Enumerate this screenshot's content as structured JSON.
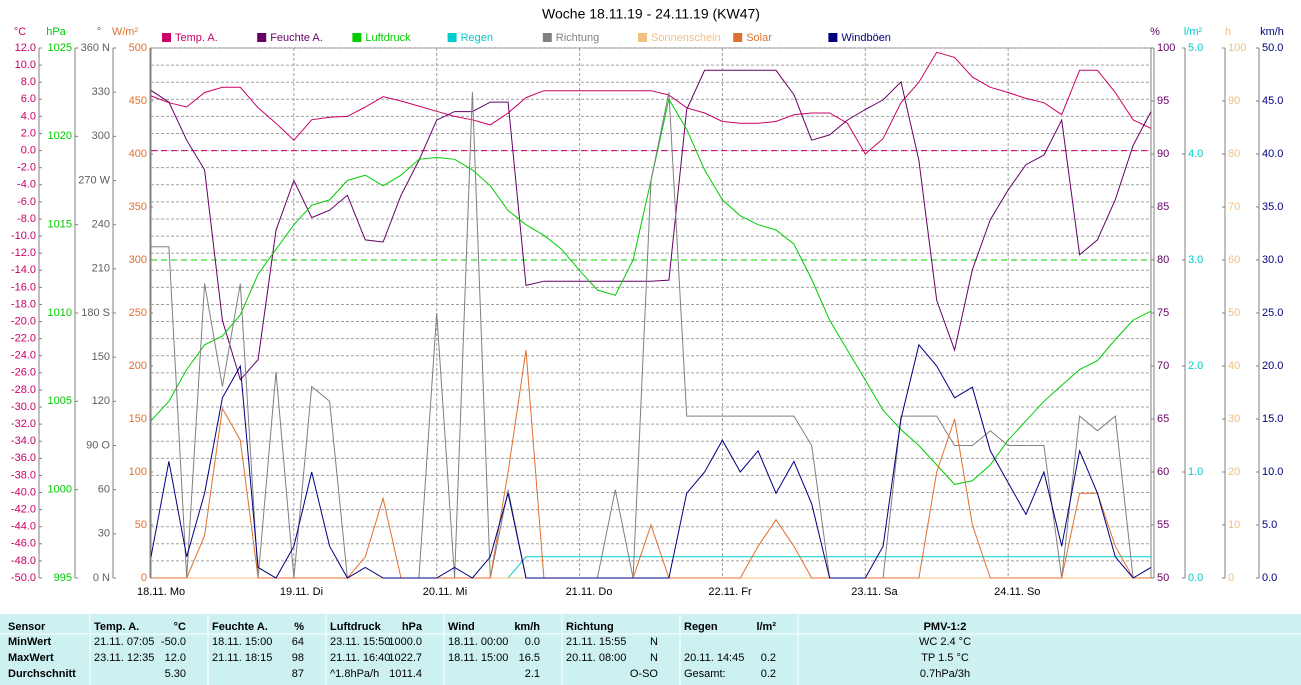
{
  "chart_data": {
    "type": "line",
    "title": "Woche 18.11.19 - 24.11.19 (KW47)",
    "categories": [
      "18.11.  Mo",
      null,
      null,
      null,
      null,
      null,
      null,
      null,
      "19.11.  Di",
      null,
      null,
      null,
      null,
      null,
      null,
      null,
      "20.11.  Mi",
      null,
      null,
      null,
      null,
      null,
      null,
      null,
      "21.11.  Do",
      null,
      null,
      null,
      null,
      null,
      null,
      null,
      "22.11.  Fr",
      null,
      null,
      null,
      null,
      null,
      null,
      null,
      "23.11.  Sa",
      null,
      null,
      null,
      null,
      null,
      null,
      null,
      "24.11.  So",
      null,
      null,
      null,
      null,
      null,
      null,
      null,
      null
    ],
    "grid": true,
    "axes": {
      "temp": {
        "unit": "°C",
        "color": "#cc0066",
        "lim": [
          -50,
          12
        ],
        "ticks": [
          {
            "value": 12,
            "label": "12.0"
          },
          {
            "value": 10,
            "label": "10.0"
          },
          {
            "value": 8,
            "label": "8.0"
          },
          {
            "value": 6,
            "label": "6.0"
          },
          {
            "value": 4,
            "label": "4.0"
          },
          {
            "value": 2,
            "label": "2.0"
          },
          {
            "value": 0,
            "label": "0.0"
          },
          {
            "value": -2,
            "label": "-2.0"
          },
          {
            "value": -4,
            "label": "-4.0"
          },
          {
            "value": -6,
            "label": "-6.0"
          },
          {
            "value": -8,
            "label": "-8.0"
          },
          {
            "value": -10,
            "label": "-10.0"
          },
          {
            "value": -12,
            "label": "-12.0"
          },
          {
            "value": -14,
            "label": "-14.0"
          },
          {
            "value": -16,
            "label": "-16.0"
          },
          {
            "value": -18,
            "label": "-18.0"
          },
          {
            "value": -20,
            "label": "-20.0"
          },
          {
            "value": -22,
            "label": "-22.0"
          },
          {
            "value": -24,
            "label": "-24.0"
          },
          {
            "value": -26,
            "label": "-26.0"
          },
          {
            "value": -28,
            "label": "-28.0"
          },
          {
            "value": -30,
            "label": "-30.0"
          },
          {
            "value": -32,
            "label": "-32.0"
          },
          {
            "value": -34,
            "label": "-34.0"
          },
          {
            "value": -36,
            "label": "-36.0"
          },
          {
            "value": -38,
            "label": "-38.0"
          },
          {
            "value": -40,
            "label": "-40.0"
          },
          {
            "value": -42,
            "label": "-42.0"
          },
          {
            "value": -44,
            "label": "-44.0"
          },
          {
            "value": -46,
            "label": "-46.0"
          },
          {
            "value": -48,
            "label": "-48.0"
          },
          {
            "value": -50,
            "label": "-50.0"
          }
        ]
      },
      "hpa": {
        "unit": "hPa",
        "color": "#00cc00",
        "lim": [
          995,
          1025
        ],
        "ticks": [
          1025,
          1020,
          1015,
          1010,
          1005,
          1000,
          995
        ]
      },
      "dir": {
        "unit": "°",
        "color": "#606060",
        "lim": [
          0,
          360
        ],
        "ticks": [
          {
            "value": 360,
            "label": "360 N"
          },
          330,
          300,
          {
            "value": 270,
            "label": "270 W"
          },
          240,
          210,
          {
            "value": 180,
            "label": "180 S"
          },
          150,
          120,
          {
            "value": 90,
            "label": "90 O"
          },
          60,
          30,
          {
            "value": 0,
            "label": "0 N"
          }
        ]
      },
      "wm2": {
        "unit": "W/m²",
        "color": "#e07030",
        "lim": [
          0,
          500
        ],
        "ticks": [
          500,
          450,
          400,
          350,
          300,
          250,
          200,
          150,
          100,
          50,
          0
        ]
      },
      "pct": {
        "unit": "%",
        "color": "#660066",
        "lim": [
          50,
          100
        ],
        "ticks": [
          100,
          95,
          90,
          85,
          80,
          75,
          70,
          65,
          60,
          55,
          50
        ]
      },
      "lm2": {
        "unit": "l/m²",
        "color": "#00cccc",
        "lim": [
          0,
          5
        ],
        "ticks": [
          {
            "value": 5,
            "label": "5.0"
          },
          {
            "value": 4,
            "label": "4.0"
          },
          {
            "value": 3,
            "label": "3.0"
          },
          {
            "value": 2,
            "label": "2.0"
          },
          {
            "value": 1,
            "label": "1.0"
          },
          {
            "value": 0,
            "label": "0.0"
          }
        ]
      },
      "h": {
        "unit": "h",
        "color": "#f0c080",
        "lim": [
          0,
          100
        ],
        "ticks": [
          100,
          90,
          80,
          70,
          60,
          50,
          40,
          30,
          20,
          10,
          0
        ]
      },
      "kmh": {
        "unit": "km/h",
        "color": "#000080",
        "lim": [
          0,
          50
        ],
        "ticks": [
          {
            "value": 50,
            "label": "50.0"
          },
          {
            "value": 45,
            "label": "45.0"
          },
          {
            "value": 40,
            "label": "40.0"
          },
          {
            "value": 35,
            "label": "35.0"
          },
          {
            "value": 30,
            "label": "30.0"
          },
          {
            "value": 25,
            "label": "25.0"
          },
          {
            "value": 20,
            "label": "20.0"
          },
          {
            "value": 15,
            "label": "15.0"
          },
          {
            "value": 10,
            "label": "10.0"
          },
          {
            "value": 5,
            "label": "5.0"
          },
          {
            "value": 0,
            "label": "0.0"
          }
        ]
      }
    },
    "reference_lines": [
      {
        "axis": "temp",
        "value": 0,
        "color": "#cc0066"
      },
      {
        "axis": "pct",
        "value": 80,
        "color": "#00cc00"
      }
    ],
    "series": [
      {
        "name": "Temp. A.",
        "color": "#cc0066",
        "axis": "temp",
        "values": [
          6.4,
          5.6,
          5.1,
          6.8,
          7.4,
          7.4,
          5.0,
          3.2,
          1.2,
          3.6,
          3.9,
          4.0,
          5.1,
          6.3,
          5.8,
          5.2,
          4.6,
          4.0,
          3.6,
          3.0,
          4.4,
          6.2,
          7.0,
          7.0,
          7.0,
          7.0,
          7.0,
          7.0,
          7.0,
          6.5,
          5.0,
          4.4,
          3.4,
          3.2,
          3.2,
          3.4,
          4.2,
          4.4,
          4.4,
          3.2,
          -0.4,
          1.4,
          5.6,
          8.0,
          11.5,
          10.9,
          8.6,
          7.4,
          6.8,
          6.1,
          5.6,
          4.2,
          9.4,
          9.4,
          6.8,
          3.6,
          2.6
        ]
      },
      {
        "name": "Feuchte A.",
        "color": "#660066",
        "axis": "pct",
        "values": [
          96.0,
          94.9,
          91.3,
          88.5,
          74.3,
          68.7,
          70.6,
          82.8,
          87.5,
          84.0,
          84.7,
          86.1,
          81.9,
          81.7,
          86.1,
          89.4,
          93.2,
          94.0,
          94.0,
          94.9,
          94.9,
          77.6,
          78.0,
          78.0,
          78.0,
          78.0,
          78.0,
          78.0,
          78.0,
          78.1,
          94.2,
          97.9,
          97.9,
          97.9,
          97.9,
          97.9,
          95.6,
          91.3,
          91.8,
          93.2,
          94.2,
          95.1,
          96.8,
          89.4,
          76.2,
          71.5,
          79.1,
          83.8,
          86.6,
          89.0,
          89.9,
          93.2,
          80.5,
          81.9,
          85.7,
          90.8,
          94.0
        ]
      },
      {
        "name": "Luftdruck",
        "color": "#00cc00",
        "axis": "hpa",
        "values": [
          1003.9,
          1005.0,
          1006.8,
          1008.2,
          1008.7,
          1009.9,
          1012.2,
          1013.6,
          1015.0,
          1016.1,
          1016.4,
          1017.5,
          1017.8,
          1017.2,
          1017.8,
          1018.7,
          1018.8,
          1018.7,
          1018.1,
          1017.2,
          1015.8,
          1015.0,
          1014.4,
          1013.6,
          1012.4,
          1011.3,
          1011.0,
          1013.0,
          1017.5,
          1022.1,
          1020.4,
          1018.1,
          1016.4,
          1015.5,
          1015.0,
          1014.7,
          1013.9,
          1011.9,
          1009.6,
          1007.9,
          1006.2,
          1004.5,
          1003.4,
          1002.5,
          1001.4,
          1000.3,
          1000.5,
          1001.4,
          1002.8,
          1003.9,
          1005.0,
          1005.9,
          1006.8,
          1007.3,
          1008.5,
          1009.6,
          1010.1
        ]
      },
      {
        "name": "Regen",
        "color": "#00cccc",
        "axis": "lm2",
        "values": [
          0,
          0,
          0,
          0,
          0,
          0,
          0,
          0,
          0,
          0,
          0,
          0,
          0,
          0,
          0,
          0,
          0,
          0,
          0,
          0,
          0,
          0.2,
          0.2,
          0.2,
          0.2,
          0.2,
          0.2,
          0.2,
          0.2,
          0.2,
          0.2,
          0.2,
          0.2,
          0.2,
          0.2,
          0.2,
          0.2,
          0.2,
          0.2,
          0.2,
          0.2,
          0.2,
          0.2,
          0.2,
          0.2,
          0.2,
          0.2,
          0.2,
          0.2,
          0.2,
          0.2,
          0.2,
          0.2,
          0.2,
          0.2,
          0.2,
          0.2
        ]
      },
      {
        "name": "Richtung",
        "color": "#808080",
        "axis": "dir",
        "values": [
          225,
          225,
          0,
          200,
          130,
          200,
          0,
          140,
          0,
          130,
          120,
          0,
          0,
          0,
          0,
          0,
          180,
          0,
          330,
          0,
          60,
          0,
          0,
          0,
          0,
          0,
          60,
          0,
          270,
          330,
          110,
          110,
          110,
          110,
          110,
          110,
          110,
          90,
          0,
          0,
          0,
          0,
          110,
          110,
          110,
          90,
          90,
          100,
          90,
          90,
          90,
          0,
          110,
          100,
          110,
          0,
          0
        ]
      },
      {
        "name": "Sonnenschein",
        "color": "#f0c080",
        "axis": "h",
        "values": [
          0,
          0,
          0,
          0,
          0,
          0,
          0,
          0,
          0,
          0,
          0,
          0,
          0,
          0,
          0,
          0,
          0,
          0,
          0,
          0,
          0,
          0,
          0,
          0,
          0,
          0,
          0,
          0,
          0,
          0,
          0,
          0,
          0,
          0,
          0,
          0,
          0,
          0,
          0,
          0,
          0,
          0,
          0,
          0,
          0,
          0,
          0,
          0,
          0,
          0,
          0,
          0,
          0,
          0,
          0,
          0,
          0
        ]
      },
      {
        "name": "Solar",
        "color": "#e07030",
        "axis": "wm2",
        "values": [
          0,
          0,
          0,
          40,
          160,
          130,
          0,
          0,
          0,
          0,
          0,
          0,
          20,
          75,
          0,
          0,
          0,
          0,
          0,
          0,
          100,
          215,
          0,
          0,
          0,
          0,
          0,
          0,
          50,
          0,
          0,
          0,
          0,
          0,
          30,
          55,
          30,
          0,
          0,
          0,
          0,
          0,
          0,
          0,
          100,
          150,
          50,
          0,
          0,
          0,
          0,
          0,
          80,
          80,
          30,
          0,
          0
        ]
      },
      {
        "name": "Windböen",
        "color": "#000080",
        "axis": "kmh",
        "values": [
          2,
          11,
          2,
          8,
          17,
          20,
          1,
          0,
          3,
          10,
          3,
          0,
          1,
          0,
          0,
          0,
          0,
          1,
          0,
          2,
          8,
          0,
          0,
          0,
          0,
          0,
          0,
          0,
          0,
          0,
          8,
          10,
          13,
          10,
          12,
          8,
          11,
          7,
          0,
          0,
          0,
          3,
          15,
          22,
          20,
          17,
          18,
          12,
          9,
          6,
          10,
          3,
          12,
          8,
          2,
          0,
          1
        ]
      }
    ]
  },
  "table": {
    "sensor": "Sensor",
    "row_labels": [
      "MinWert",
      "MaxWert",
      "Durchschnitt"
    ],
    "groups": [
      {
        "name": "Temp. A.",
        "unit": "°C",
        "min": {
          "time": "21.11. 07:05",
          "value": "-50.0"
        },
        "max": {
          "time": "23.11. 12:35",
          "value": "12.0"
        },
        "avg": {
          "value": "5.30"
        }
      },
      {
        "name": "Feuchte A.",
        "unit": "%",
        "min": {
          "time": "18.11. 15:00",
          "value": "64"
        },
        "max": {
          "time": "21.11. 18:15",
          "value": "98"
        },
        "avg": {
          "value": "87"
        }
      },
      {
        "name": "Luftdruck",
        "unit": "hPa",
        "min": {
          "time": "23.11. 15:50",
          "value": "1000.0"
        },
        "max": {
          "time": "21.11. 16:40",
          "value": "1022.7"
        },
        "avg": {
          "time": "^1.8hPa/h",
          "value": "1011.4"
        }
      },
      {
        "name": "Wind",
        "unit": "km/h",
        "min": {
          "time": "18.11. 00:00",
          "value": "0.0"
        },
        "max": {
          "time": "18.11. 15:00",
          "value": "16.5"
        },
        "avg": {
          "value": "2.1"
        }
      },
      {
        "name": "Richtung",
        "min": {
          "time": "21.11. 15:55",
          "value": "N"
        },
        "max": {
          "time": "20.11. 08:00",
          "value": "N"
        },
        "avg": {
          "value": "O-SO"
        }
      },
      {
        "name": "Regen",
        "unit": "l/m²",
        "max": {
          "time": "20.11. 14:45",
          "value": "0.2"
        },
        "avg": {
          "time": "Gesamt:",
          "value": "0.2"
        }
      }
    ],
    "pmv": {
      "name": "PMV-1:2",
      "lines": [
        "WC 2.4 °C",
        "TP 1.5 °C",
        "0.7hPa/3h"
      ]
    }
  }
}
